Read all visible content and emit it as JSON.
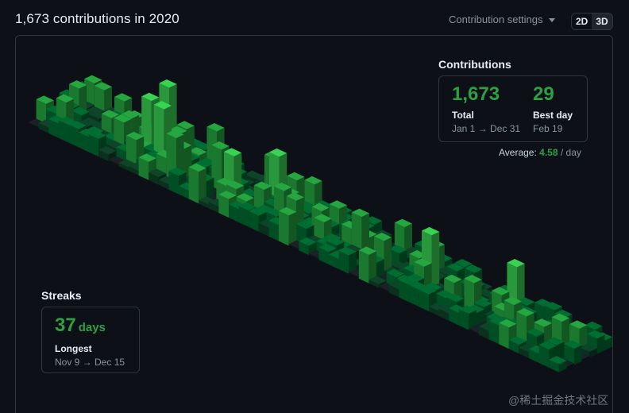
{
  "header": {
    "title": "1,673 contributions in 2020",
    "settings_label": "Contribution settings",
    "view_2d": "2D",
    "view_3d": "3D"
  },
  "contributions": {
    "heading": "Contributions",
    "total_value": "1,673",
    "total_label": "Total",
    "total_range": "Jan 1 → Dec 31",
    "best_value": "29",
    "best_label": "Best day",
    "best_date": "Feb 19",
    "average_prefix": "Average:",
    "average_value": "4.58",
    "average_suffix": "/ day"
  },
  "streaks": {
    "heading": "Streaks",
    "longest_value": "37",
    "longest_unit": "days",
    "longest_label": "Longest",
    "longest_range": "Nov 9 → Dec 15"
  },
  "watermark": "@稀土掘金技术社区",
  "colors": {
    "background": "#0d1117",
    "border": "#30363d",
    "accent_green": "#2ea043",
    "level_colors": [
      "#161b22",
      "#0e4429",
      "#006d32",
      "#26a641",
      "#39d353"
    ]
  }
}
